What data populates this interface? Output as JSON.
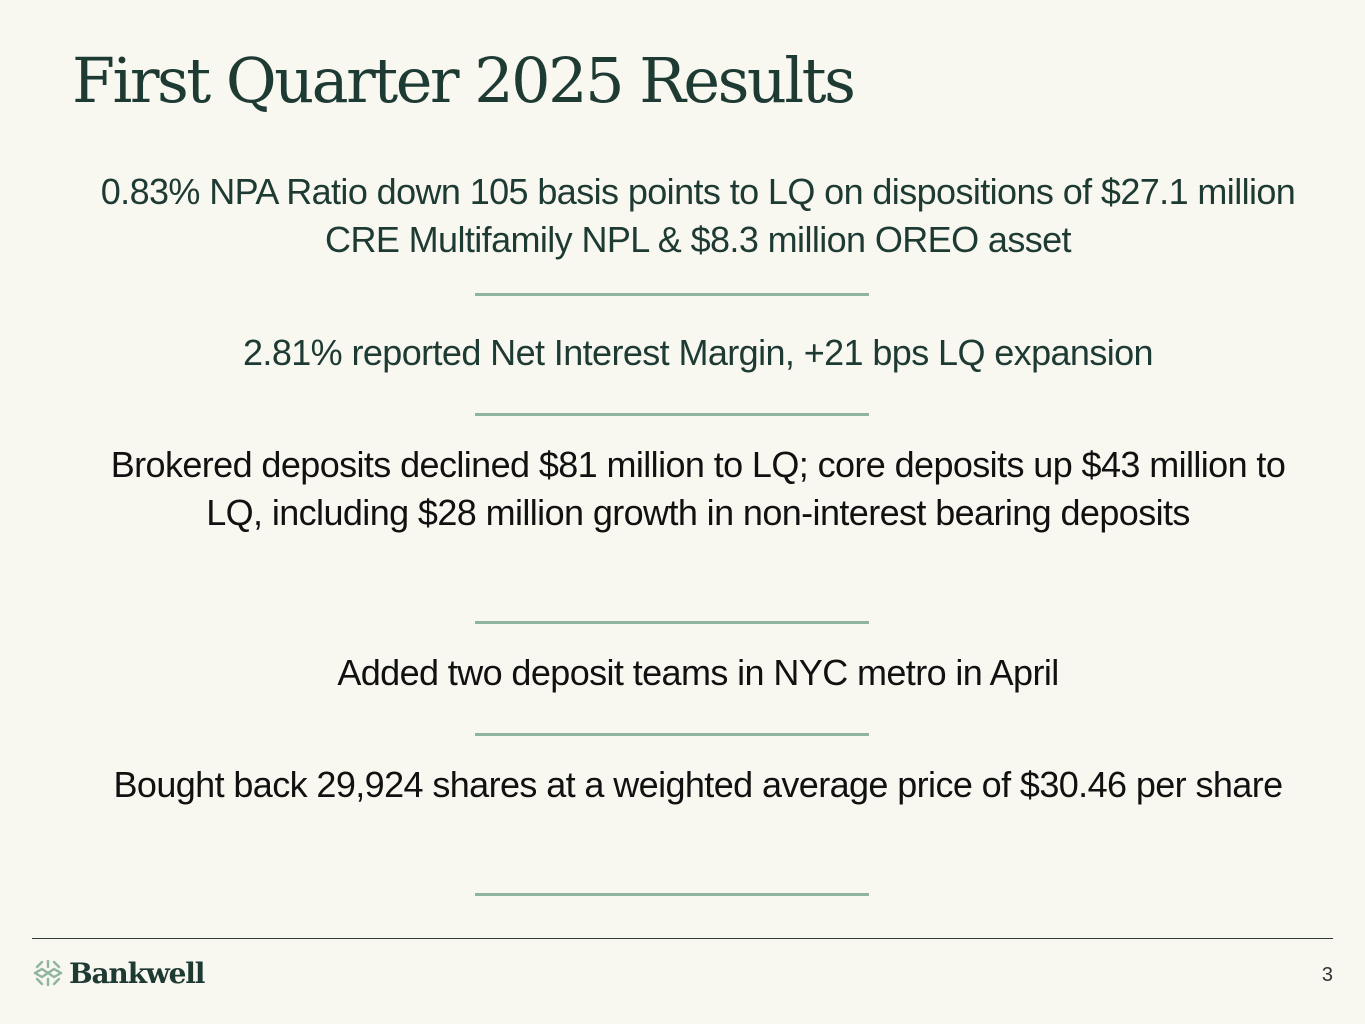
{
  "title": "First Quarter 2025 Results",
  "bullets": [
    "0.83% NPA Ratio down 105 basis points to LQ on dispositions of $27.1 million CRE Multifamily NPL & $8.3 million OREO asset",
    "2.81% reported Net Interest Margin, +21 bps LQ expansion",
    "Brokered deposits declined $81 million to LQ; core deposits up $43 million to LQ, including $28 million growth in non-interest bearing deposits",
    "Added two deposit teams in NYC metro in April",
    "Bought back 29,924 shares at a weighted average price of $30.46 per share"
  ],
  "footer": {
    "logo_text": "Bankwell",
    "logo_icon": "bankwell-logo-icon",
    "page_number": "3"
  },
  "colors": {
    "background": "#f8f7f0",
    "text_primary": "#1d3a33",
    "text_dark": "#111111",
    "accent_rule": "#8fb59e"
  }
}
